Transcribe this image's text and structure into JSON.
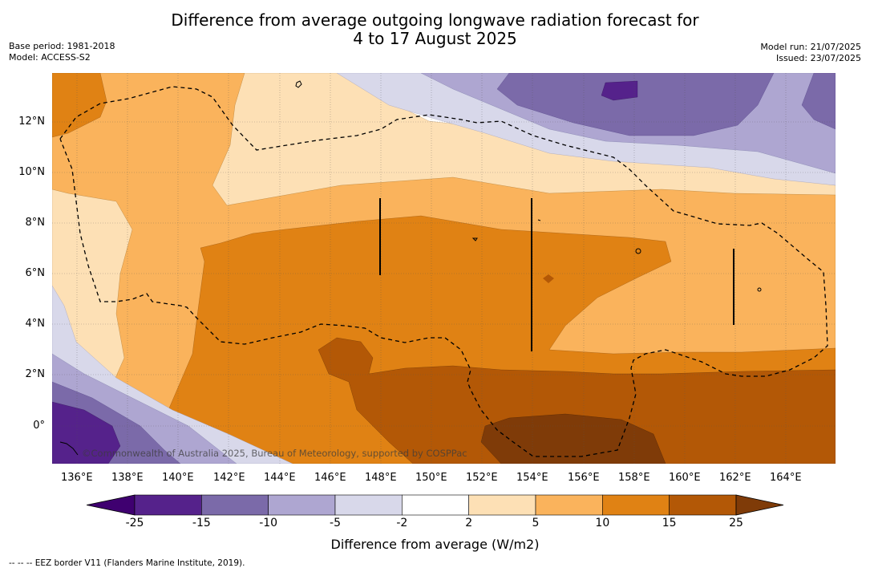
{
  "title_line1": "Difference from average outgoing longwave radiation forecast for",
  "title_line2": "4 to 17 August 2025",
  "base_period": "Base period: 1981-2018",
  "model": "Model: ACCESS-S2",
  "model_run": "Model run: 21/07/2025",
  "issued": "Issued: 23/07/2025",
  "credit": "©Commonwealth of Australia 2025, Bureau of Meteorology, supported by COSPPac",
  "lon_labels": [
    "136°E",
    "138°E",
    "140°E",
    "142°E",
    "144°E",
    "146°E",
    "148°E",
    "150°E",
    "152°E",
    "154°E",
    "156°E",
    "158°E",
    "160°E",
    "162°E",
    "164°E"
  ],
  "lat_labels": [
    "12°N",
    "10°N",
    "8°N",
    "6°N",
    "4°N",
    "2°N",
    "0°"
  ],
  "colorbar": {
    "title": "Difference from average (W/m2)",
    "labels": [
      "-25",
      "-15",
      "-10",
      "-5",
      "-2",
      "2",
      "5",
      "10",
      "15",
      "25"
    ],
    "colors": [
      "#3f0070",
      "#55228b",
      "#7b6aa9",
      "#aea6d1",
      "#d8d8ea",
      "#ffffff",
      "#fde0b5",
      "#fab35c",
      "#e08214",
      "#b35806",
      "#7f3b08"
    ]
  },
  "footnote": "--  --  -- EEZ border V11 (Flanders Marine Institute, 2019)."
}
